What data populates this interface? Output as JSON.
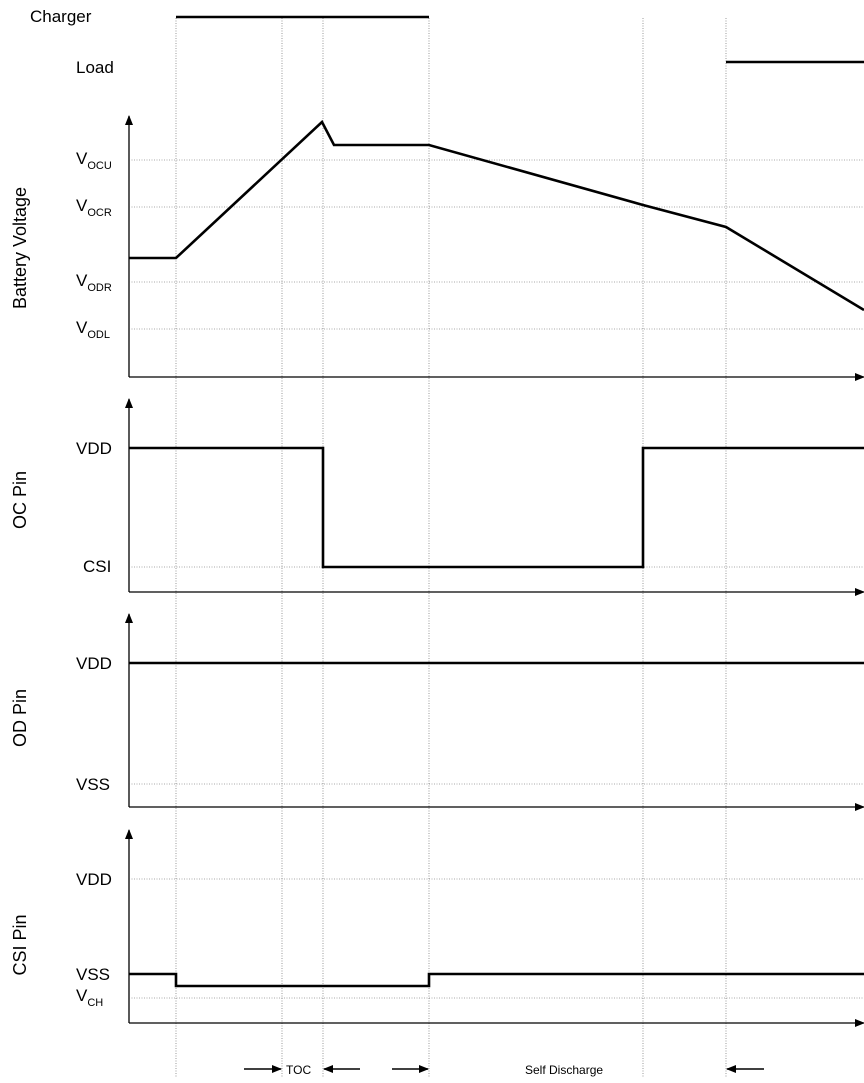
{
  "signals": {
    "charger": "Charger",
    "load": "Load"
  },
  "panels": {
    "battery": {
      "ylabel": "Battery Voltage",
      "levels": [
        {
          "main": "V",
          "sub": "OCU"
        },
        {
          "main": "V",
          "sub": "OCR"
        },
        {
          "main": "V",
          "sub": "ODR"
        },
        {
          "main": "V",
          "sub": "ODL"
        }
      ]
    },
    "oc": {
      "ylabel": "OC Pin",
      "levels": [
        "VDD",
        "CSI"
      ]
    },
    "od": {
      "ylabel": "OD Pin",
      "levels": [
        "VDD",
        "VSS"
      ]
    },
    "csi": {
      "ylabel": "CSI Pin",
      "levels": [
        "VDD",
        "VSS"
      ],
      "vch": {
        "main": "V",
        "sub": "CH"
      }
    }
  },
  "annotations": {
    "toc": "TOC",
    "self_discharge": "Self Discharge"
  }
}
